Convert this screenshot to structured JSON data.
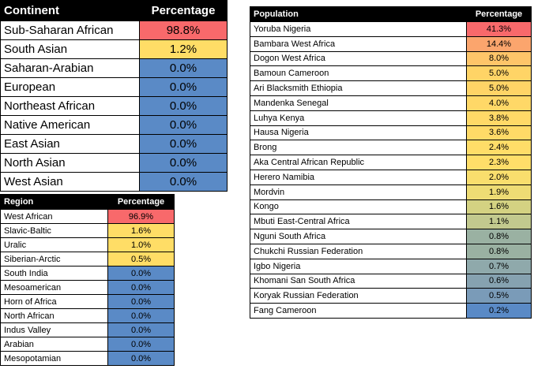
{
  "continent": {
    "headers": [
      "Continent",
      "Percentage"
    ],
    "rows": [
      {
        "name": "Sub-Saharan African",
        "value": "98.8%",
        "color": "#f8696b"
      },
      {
        "name": "South Asian",
        "value": "1.2%",
        "color": "#ffdd66"
      },
      {
        "name": "Saharan-Arabian",
        "value": "0.0%",
        "color": "#5a8ac6"
      },
      {
        "name": "European",
        "value": "0.0%",
        "color": "#5a8ac6"
      },
      {
        "name": "Northeast African",
        "value": "0.0%",
        "color": "#5a8ac6"
      },
      {
        "name": "Native American",
        "value": "0.0%",
        "color": "#5a8ac6"
      },
      {
        "name": "East Asian",
        "value": "0.0%",
        "color": "#5a8ac6"
      },
      {
        "name": "North Asian",
        "value": "0.0%",
        "color": "#5a8ac6"
      },
      {
        "name": "West Asian",
        "value": "0.0%",
        "color": "#5a8ac6"
      }
    ]
  },
  "region": {
    "headers": [
      "Region",
      "Percentage"
    ],
    "rows": [
      {
        "name": "West African",
        "value": "96.9%",
        "color": "#f8696b"
      },
      {
        "name": "Slavic-Baltic",
        "value": "1.6%",
        "color": "#ffdd66"
      },
      {
        "name": "Uralic",
        "value": "1.0%",
        "color": "#ffdd66"
      },
      {
        "name": "Siberian-Arctic",
        "value": "0.5%",
        "color": "#ffdd66"
      },
      {
        "name": "South India",
        "value": "0.0%",
        "color": "#5a8ac6"
      },
      {
        "name": "Mesoamerican",
        "value": "0.0%",
        "color": "#5a8ac6"
      },
      {
        "name": "Horn of Africa",
        "value": "0.0%",
        "color": "#5a8ac6"
      },
      {
        "name": "North African",
        "value": "0.0%",
        "color": "#5a8ac6"
      },
      {
        "name": "Indus Valley",
        "value": "0.0%",
        "color": "#5a8ac6"
      },
      {
        "name": "Arabian",
        "value": "0.0%",
        "color": "#5a8ac6"
      },
      {
        "name": "Mesopotamian",
        "value": "0.0%",
        "color": "#5a8ac6"
      }
    ]
  },
  "population": {
    "headers": [
      "Population",
      "Percentage"
    ],
    "rows": [
      {
        "name": "Yoruba Nigeria",
        "value": "41.3%",
        "color": "#f8696b"
      },
      {
        "name": "Bambara West Africa",
        "value": "14.4%",
        "color": "#fba56d"
      },
      {
        "name": "Dogon West Africa",
        "value": "8.0%",
        "color": "#fec569"
      },
      {
        "name": "Bamoun Cameroon",
        "value": "5.0%",
        "color": "#ffd466"
      },
      {
        "name": "Ari Blacksmith Ethiopia",
        "value": "5.0%",
        "color": "#ffd466"
      },
      {
        "name": "Mandenka Senegal",
        "value": "4.0%",
        "color": "#ffd867"
      },
      {
        "name": "Luhya Kenya",
        "value": "3.8%",
        "color": "#ffd967"
      },
      {
        "name": "Hausa Nigeria",
        "value": "3.6%",
        "color": "#ffda67"
      },
      {
        "name": "Brong",
        "value": "2.4%",
        "color": "#ffdd68"
      },
      {
        "name": "Aka Central African Republic",
        "value": "2.3%",
        "color": "#ffde69"
      },
      {
        "name": "Herero Namibia",
        "value": "2.0%",
        "color": "#f9de6d"
      },
      {
        "name": "Mordvin",
        "value": "1.9%",
        "color": "#eedc74"
      },
      {
        "name": "Kongo",
        "value": "1.6%",
        "color": "#d4d282"
      },
      {
        "name": "Mbuti East-Central Africa",
        "value": "1.1%",
        "color": "#c2c98e"
      },
      {
        "name": "Nguni South Africa",
        "value": "0.8%",
        "color": "#9ab1a2"
      },
      {
        "name": "Chukchi Russian Federation",
        "value": "0.8%",
        "color": "#9ab1a2"
      },
      {
        "name": "Igbo Nigeria",
        "value": "0.7%",
        "color": "#8fa9ab"
      },
      {
        "name": "Khomani San South Africa",
        "value": "0.6%",
        "color": "#86a2b0"
      },
      {
        "name": "Koryak Russian Federation",
        "value": "0.5%",
        "color": "#7a9bb8"
      },
      {
        "name": "Fang Cameroon",
        "value": "0.2%",
        "color": "#5a8ac6"
      }
    ]
  }
}
